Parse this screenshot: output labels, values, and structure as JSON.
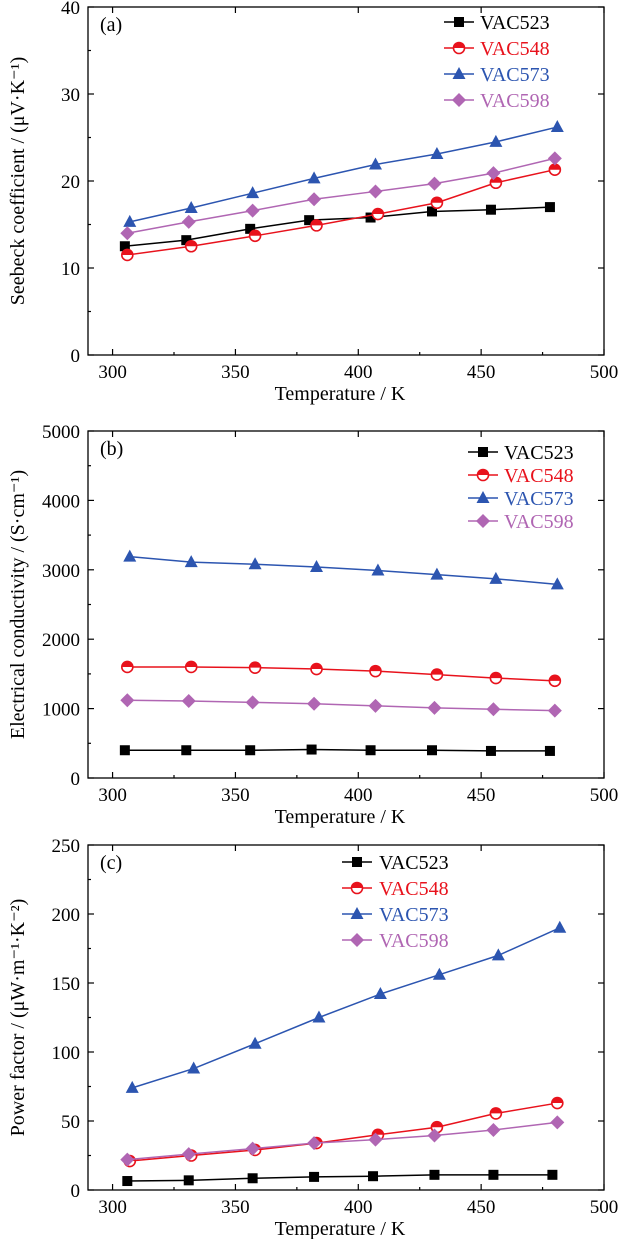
{
  "chart_data": [
    {
      "type": "line",
      "panel_label": "(a)",
      "xlabel": "Temperature / K",
      "ylabel": "Seebeck coefficient / (μV·K⁻¹)",
      "xlim": [
        290,
        500
      ],
      "ylim": [
        0,
        40
      ],
      "xticks": [
        300,
        350,
        400,
        450,
        500
      ],
      "yticks": [
        0,
        10,
        20,
        30,
        40
      ],
      "legend_position": "top-right",
      "series": [
        {
          "name": "VAC523",
          "color": "#000000",
          "marker": "square",
          "x": [
            305,
            330,
            356,
            380,
            405,
            430,
            454,
            478
          ],
          "y": [
            12.5,
            13.2,
            14.5,
            15.5,
            15.8,
            16.5,
            16.7,
            17.0
          ]
        },
        {
          "name": "VAC548",
          "color": "#e8121c",
          "marker": "circle",
          "x": [
            306,
            332,
            358,
            383,
            408,
            432,
            456,
            480
          ],
          "y": [
            11.5,
            12.5,
            13.7,
            14.9,
            16.2,
            17.5,
            19.8,
            21.3
          ]
        },
        {
          "name": "VAC573",
          "color": "#2c55b0",
          "marker": "triangle",
          "x": [
            307,
            332,
            357,
            382,
            407,
            432,
            456,
            481
          ],
          "y": [
            15.3,
            16.9,
            18.6,
            20.3,
            21.9,
            23.1,
            24.5,
            26.2
          ]
        },
        {
          "name": "VAC598",
          "color": "#b066b3",
          "marker": "diamond",
          "x": [
            306,
            331,
            357,
            382,
            407,
            431,
            455,
            480
          ],
          "y": [
            14.0,
            15.3,
            16.6,
            17.9,
            18.8,
            19.7,
            20.9,
            22.6
          ]
        }
      ]
    },
    {
      "type": "line",
      "panel_label": "(b)",
      "xlabel": "Temperature / K",
      "ylabel": "Electrical conductivity / (S·cm⁻¹)",
      "xlim": [
        290,
        500
      ],
      "ylim": [
        0,
        5000
      ],
      "xticks": [
        300,
        350,
        400,
        450,
        500
      ],
      "yticks": [
        0,
        1000,
        2000,
        3000,
        4000,
        5000
      ],
      "legend_position": "top-right",
      "series": [
        {
          "name": "VAC523",
          "color": "#000000",
          "marker": "square",
          "x": [
            305,
            330,
            356,
            381,
            405,
            430,
            454,
            478
          ],
          "y": [
            400,
            400,
            400,
            410,
            400,
            400,
            390,
            390
          ]
        },
        {
          "name": "VAC548",
          "color": "#e8121c",
          "marker": "circle",
          "x": [
            306,
            332,
            358,
            383,
            407,
            432,
            456,
            480
          ],
          "y": [
            1600,
            1600,
            1590,
            1570,
            1540,
            1490,
            1440,
            1400
          ]
        },
        {
          "name": "VAC573",
          "color": "#2c55b0",
          "marker": "triangle",
          "x": [
            307,
            332,
            358,
            383,
            408,
            432,
            456,
            481
          ],
          "y": [
            3190,
            3110,
            3080,
            3040,
            2990,
            2930,
            2870,
            2790
          ]
        },
        {
          "name": "VAC598",
          "color": "#b066b3",
          "marker": "diamond",
          "x": [
            306,
            331,
            357,
            382,
            407,
            431,
            455,
            480
          ],
          "y": [
            1120,
            1110,
            1090,
            1070,
            1040,
            1010,
            990,
            970
          ]
        }
      ]
    },
    {
      "type": "line",
      "panel_label": "(c)",
      "xlabel": "Temperature / K",
      "ylabel": "Power factor / (μW·m⁻¹·K⁻²)",
      "xlim": [
        290,
        500
      ],
      "ylim": [
        0,
        250
      ],
      "xticks": [
        300,
        350,
        400,
        450,
        500
      ],
      "yticks": [
        0,
        50,
        100,
        150,
        200,
        250
      ],
      "legend_position": "top-center",
      "series": [
        {
          "name": "VAC523",
          "color": "#000000",
          "marker": "square",
          "x": [
            306,
            331,
            357,
            382,
            406,
            431,
            455,
            479
          ],
          "y": [
            6.5,
            7,
            8.5,
            9.5,
            10,
            11,
            11,
            11
          ]
        },
        {
          "name": "VAC548",
          "color": "#e8121c",
          "marker": "circle",
          "x": [
            307,
            332,
            358,
            383,
            408,
            432,
            456,
            481
          ],
          "y": [
            21,
            25,
            29,
            34,
            40,
            45.5,
            55.5,
            63
          ]
        },
        {
          "name": "VAC573",
          "color": "#2c55b0",
          "marker": "triangle",
          "x": [
            308,
            333,
            358,
            384,
            409,
            433,
            457,
            482
          ],
          "y": [
            74,
            88,
            106,
            125,
            142,
            156,
            170,
            190
          ]
        },
        {
          "name": "VAC598",
          "color": "#b066b3",
          "marker": "diamond",
          "x": [
            306,
            331,
            357,
            382,
            407,
            431,
            455,
            481
          ],
          "y": [
            22,
            26,
            30,
            34,
            36.5,
            39.5,
            43.5,
            49
          ]
        }
      ]
    }
  ]
}
